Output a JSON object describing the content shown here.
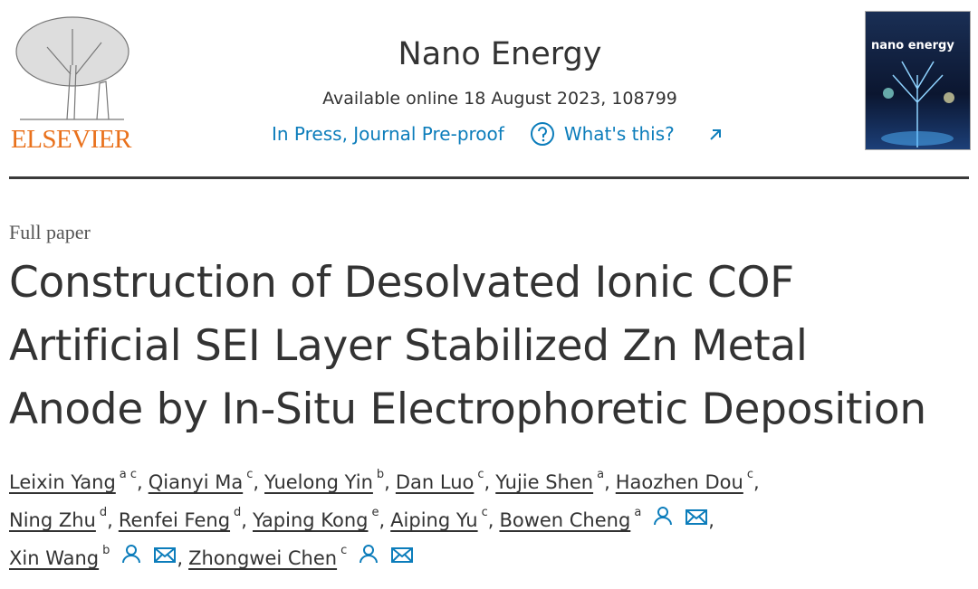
{
  "header": {
    "publisher": "ELSEVIER",
    "journal": "Nano Energy",
    "available": "Available online 18 August 2023, 108799",
    "status": "In Press, Journal Pre-proof",
    "help": "What's this?",
    "cover_title": "nano energy"
  },
  "article": {
    "type": "Full paper",
    "title_lines": [
      "Construction of Desolvated Ionic COF",
      "Artificial SEI Layer Stabilized Zn Metal",
      "Anode by In-Situ Electrophoretic Deposition"
    ],
    "separator": ",",
    "authors": [
      {
        "name": "Leixin Yang",
        "aff": "a c",
        "corresponding": false
      },
      {
        "name": "Qianyi Ma",
        "aff": "c",
        "corresponding": false
      },
      {
        "name": "Yuelong Yin",
        "aff": "b",
        "corresponding": false
      },
      {
        "name": "Dan Luo",
        "aff": "c",
        "corresponding": false
      },
      {
        "name": "Yujie Shen",
        "aff": "a",
        "corresponding": false
      },
      {
        "name": "Haozhen Dou",
        "aff": "c",
        "corresponding": false
      },
      {
        "name": "Ning Zhu",
        "aff": "d",
        "corresponding": false
      },
      {
        "name": "Renfei Feng",
        "aff": "d",
        "corresponding": false
      },
      {
        "name": "Yaping Kong",
        "aff": "e",
        "corresponding": false
      },
      {
        "name": "Aiping Yu",
        "aff": "c",
        "corresponding": false
      },
      {
        "name": "Bowen Cheng",
        "aff": "a",
        "corresponding": true
      },
      {
        "name": "Xin Wang",
        "aff": "b",
        "corresponding": true
      },
      {
        "name": "Zhongwei Chen",
        "aff": "c",
        "corresponding": true
      }
    ]
  }
}
